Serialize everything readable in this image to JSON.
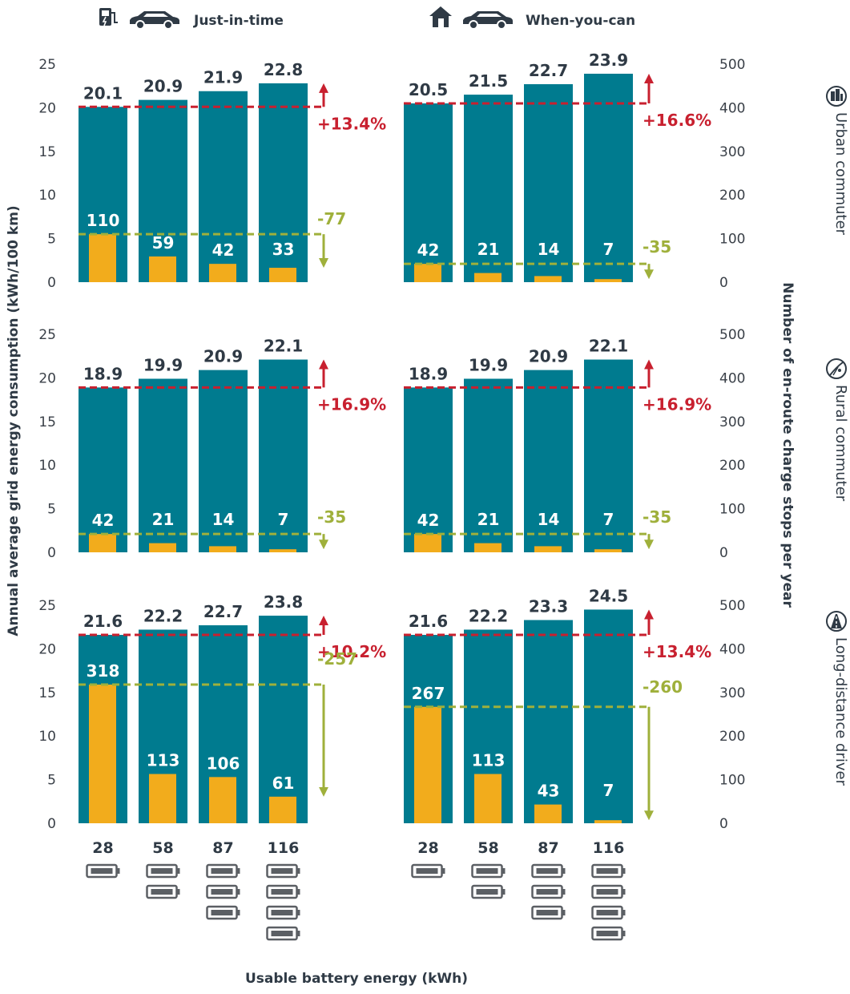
{
  "colors": {
    "energy_bar": "#007b8f",
    "stops_bar": "#f2ac1c",
    "increase": "#c8202f",
    "decrease": "#9fb03b",
    "text": "#2f3a45",
    "battery_icon": "#5b5f64"
  },
  "header": {
    "scenarios": [
      {
        "label": "Just-in-time",
        "icons": [
          "charging-station-icon",
          "car-icon"
        ]
      },
      {
        "label": "When-you-can",
        "icons": [
          "house-icon",
          "car-icon"
        ]
      }
    ]
  },
  "axes": {
    "y_left_title": "Annual average grid energy consumption (kWh/100 km)",
    "y_right_title": "Number of en-route charge stops per year",
    "x_title": "Usable battery energy (kWh)",
    "y_left_ticks": [
      "0",
      "5",
      "10",
      "15",
      "20",
      "25"
    ],
    "y_right_ticks": [
      "0",
      "100",
      "200",
      "300",
      "400",
      "500"
    ]
  },
  "rows": [
    {
      "label": "Urban commuter",
      "icon": "urban-commuter-icon"
    },
    {
      "label": "Rural commuter",
      "icon": "rural-commuter-icon"
    },
    {
      "label": "Long-distance driver",
      "icon": "long-distance-driver-icon"
    }
  ],
  "chart_data": {
    "type": "bar",
    "categories": [
      "28",
      "58",
      "87",
      "116"
    ],
    "battery_icon_counts": [
      1,
      2,
      3,
      4
    ],
    "ylim_left": [
      0,
      25
    ],
    "ylim_right": [
      0,
      500
    ],
    "panels": [
      {
        "row": "Urban commuter",
        "scenario": "Just-in-time",
        "energy": [
          20.1,
          20.9,
          21.9,
          22.8
        ],
        "energy_labels": [
          "20.1",
          "20.9",
          "21.9",
          "22.8"
        ],
        "stops": [
          110,
          59,
          42,
          33
        ],
        "stops_labels": [
          "110",
          "59",
          "42",
          "33"
        ],
        "increase": "+13.4%",
        "decrease": "-77"
      },
      {
        "row": "Urban commuter",
        "scenario": "When-you-can",
        "energy": [
          20.5,
          21.5,
          22.7,
          23.9
        ],
        "energy_labels": [
          "20.5",
          "21.5",
          "22.7",
          "23.9"
        ],
        "stops": [
          42,
          21,
          14,
          7
        ],
        "stops_labels": [
          "42",
          "21",
          "14",
          "7"
        ],
        "increase": "+16.6%",
        "decrease": "-35"
      },
      {
        "row": "Rural commuter",
        "scenario": "Just-in-time",
        "energy": [
          18.9,
          19.9,
          20.9,
          22.1
        ],
        "energy_labels": [
          "18.9",
          "19.9",
          "20.9",
          "22.1"
        ],
        "stops": [
          42,
          21,
          14,
          7
        ],
        "stops_labels": [
          "42",
          "21",
          "14",
          "7"
        ],
        "increase": "+16.9%",
        "decrease": "-35"
      },
      {
        "row": "Rural commuter",
        "scenario": "When-you-can",
        "energy": [
          18.9,
          19.9,
          20.9,
          22.1
        ],
        "energy_labels": [
          "18.9",
          "19.9",
          "20.9",
          "22.1"
        ],
        "stops": [
          42,
          21,
          14,
          7
        ],
        "stops_labels": [
          "42",
          "21",
          "14",
          "7"
        ],
        "increase": "+16.9%",
        "decrease": "-35"
      },
      {
        "row": "Long-distance driver",
        "scenario": "Just-in-time",
        "energy": [
          21.6,
          22.2,
          22.7,
          23.8
        ],
        "energy_labels": [
          "21.6",
          "22.2",
          "22.7",
          "23.8"
        ],
        "stops": [
          318,
          113,
          106,
          61
        ],
        "stops_labels": [
          "318",
          "113",
          "106",
          "61"
        ],
        "increase": "+10.2%",
        "decrease": "-257"
      },
      {
        "row": "Long-distance driver",
        "scenario": "When-you-can",
        "energy": [
          21.6,
          22.2,
          23.3,
          24.5
        ],
        "energy_labels": [
          "21.6",
          "22.2",
          "23.3",
          "24.5"
        ],
        "stops": [
          267,
          113,
          43,
          7
        ],
        "stops_labels": [
          "267",
          "113",
          "43",
          "7"
        ],
        "increase": "+13.4%",
        "decrease": "-260"
      }
    ]
  }
}
